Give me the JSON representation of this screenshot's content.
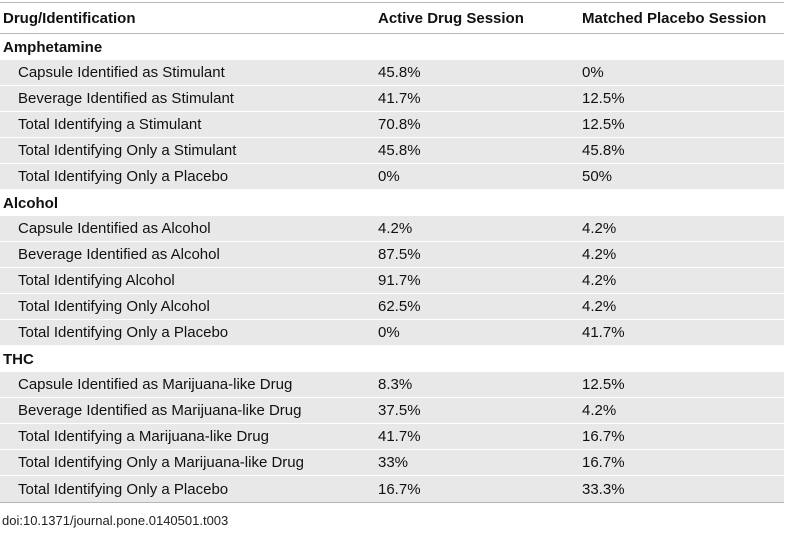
{
  "table": {
    "headers": [
      "Drug/Identification",
      "Active Drug Session",
      "Matched Placebo Session"
    ],
    "groups": [
      {
        "name": "Amphetamine",
        "rows": [
          [
            "Capsule Identified as Stimulant",
            "45.8%",
            "0%"
          ],
          [
            "Beverage Identified as Stimulant",
            "41.7%",
            "12.5%"
          ],
          [
            "Total Identifying a Stimulant",
            "70.8%",
            "12.5%"
          ],
          [
            "Total Identifying Only a Stimulant",
            "45.8%",
            "45.8%"
          ],
          [
            "Total Identifying Only a Placebo",
            "0%",
            "50%"
          ]
        ]
      },
      {
        "name": "Alcohol",
        "rows": [
          [
            "Capsule Identified as Alcohol",
            "4.2%",
            "4.2%"
          ],
          [
            "Beverage Identified as Alcohol",
            "87.5%",
            "4.2%"
          ],
          [
            "Total Identifying Alcohol",
            "91.7%",
            "4.2%"
          ],
          [
            "Total Identifying Only Alcohol",
            "62.5%",
            "4.2%"
          ],
          [
            "Total Identifying Only a Placebo",
            "0%",
            "41.7%"
          ]
        ]
      },
      {
        "name": "THC",
        "rows": [
          [
            "Capsule Identified as Marijuana-like Drug",
            "8.3%",
            "12.5%"
          ],
          [
            "Beverage Identified as Marijuana-like Drug",
            "37.5%",
            "4.2%"
          ],
          [
            "Total Identifying a Marijuana-like Drug",
            "41.7%",
            "16.7%"
          ],
          [
            "Total Identifying Only a Marijuana-like Drug",
            "33%",
            "16.7%"
          ],
          [
            "Total Identifying Only a Placebo",
            "16.7%",
            "33.3%"
          ]
        ]
      }
    ]
  },
  "footer": {
    "doi": "doi:10.1371/journal.pone.0140501.t003"
  }
}
